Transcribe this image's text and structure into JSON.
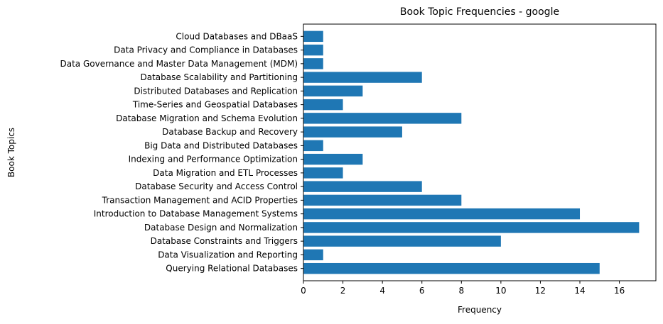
{
  "chart_data": {
    "type": "bar",
    "orientation": "horizontal",
    "title": "Book Topic Frequencies - google",
    "xlabel": "Frequency",
    "ylabel": "Book Topics",
    "xlim": [
      0,
      17.85
    ],
    "xticks": [
      0,
      2,
      4,
      6,
      8,
      10,
      12,
      14,
      16
    ],
    "grid": false,
    "bar_color": "#1f77b4",
    "categories": [
      "Querying Relational Databases",
      "Data Visualization and Reporting",
      "Database Constraints and Triggers",
      "Database Design and Normalization",
      "Introduction to Database Management Systems",
      "Transaction Management and ACID Properties",
      "Database Security and Access Control",
      "Data Migration and ETL Processes",
      "Indexing and Performance Optimization",
      "Big Data and Distributed Databases",
      "Database Backup and Recovery",
      "Database Migration and Schema Evolution",
      "Time-Series and Geospatial Databases",
      "Distributed Databases and Replication",
      "Database Scalability and Partitioning",
      "Data Governance and Master Data Management (MDM)",
      "Data Privacy and Compliance in Databases",
      "Cloud Databases and DBaaS"
    ],
    "values": [
      15,
      1,
      10,
      17,
      14,
      8,
      6,
      2,
      3,
      1,
      5,
      8,
      2,
      3,
      6,
      1,
      1,
      1
    ]
  }
}
